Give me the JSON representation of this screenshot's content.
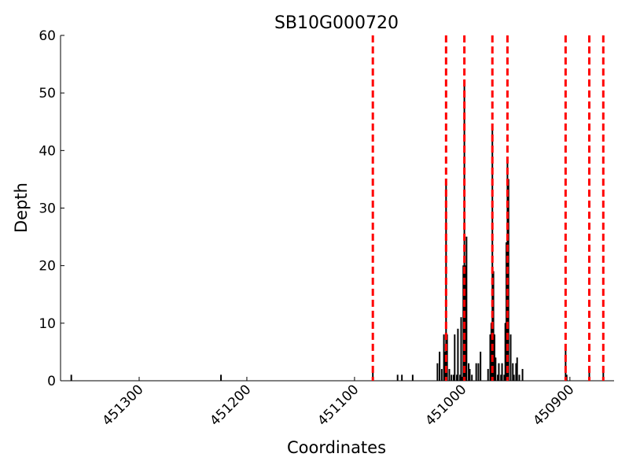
{
  "chart_data": {
    "type": "bar",
    "title": "SB10G000720",
    "x_label": "Coordinates",
    "y_label": "Depth",
    "x": [
      451363,
      451224,
      451083,
      451060,
      451056,
      451046,
      451023,
      451021,
      451019,
      451017,
      451016,
      451015,
      451014,
      451012,
      451010,
      451008,
      451007,
      451005,
      451004,
      451002,
      451001,
      450999,
      450998,
      450997,
      450996,
      450994,
      450993,
      450991,
      450987,
      450985,
      450983,
      450976,
      450974,
      450973,
      450972,
      450971,
      450970,
      450969,
      450967,
      450966,
      450964,
      450963,
      450961,
      450960,
      450959,
      450958,
      450957,
      450955,
      450953,
      450952,
      450950,
      450949,
      450947,
      450944,
      450904,
      450903,
      450882,
      450869
    ],
    "values": [
      1,
      1,
      2,
      1,
      1,
      1,
      3,
      5,
      2,
      8,
      5,
      35,
      8,
      2,
      1,
      1,
      8,
      1,
      9,
      1,
      11,
      20,
      52,
      20,
      25,
      3,
      2,
      1,
      3,
      3,
      5,
      2,
      8,
      10,
      44,
      19,
      8,
      4,
      1,
      3,
      1,
      3,
      1,
      10,
      24,
      38,
      35,
      8,
      3,
      1,
      3,
      4,
      1,
      2,
      6,
      1,
      2,
      2
    ],
    "color": "#000000",
    "vlines": [
      451083,
      451015,
      450998,
      450972,
      450958,
      450904,
      450882,
      450869
    ],
    "vline_color": "#ff0000",
    "xlim": [
      451373,
      450859
    ],
    "xticks": [
      451300,
      451200,
      451100,
      451000,
      450900
    ],
    "ylim": [
      0,
      60
    ],
    "yticks": [
      0,
      10,
      20,
      30,
      40,
      50,
      60
    ]
  }
}
